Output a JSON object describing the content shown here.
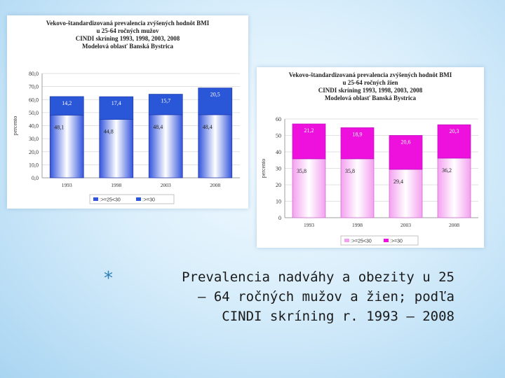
{
  "caption": {
    "bullet": "*",
    "lines": [
      "Prevalencia nadváhy a obezity u 25",
      "– 64 ročných mužov a žien; podľa",
      "CINDI skríning r. 1993 – 2008"
    ]
  },
  "chart_data": [
    {
      "id": "men",
      "type": "bar",
      "stacked": true,
      "title": [
        "Vekovo-štandardizovaná prevalencia zvýšených hodnôt BMI",
        "u 25-64 ročných mužov",
        "CINDI skríning 1993, 1998, 2003, 2008",
        "Modelová oblasť Banská Bystrica"
      ],
      "ylabel": "percento",
      "ylim": [
        0,
        80
      ],
      "yticks": [
        "0,0",
        "10,0",
        "20,0",
        "30,0",
        "40,0",
        "50,0",
        "60,0",
        "70,0",
        "80,0"
      ],
      "categories": [
        "1993",
        "1998",
        "2003",
        "2008"
      ],
      "series": [
        {
          "name": ":>=25<30",
          "values": [
            48.1,
            44.8,
            48.4,
            48.4
          ],
          "labels": [
            "48,1",
            "44,8",
            "48,4",
            "48,4"
          ],
          "color": "#3355dd"
        },
        {
          "name": ":>=30",
          "values": [
            14.2,
            17.4,
            15.7,
            20.5
          ],
          "labels": [
            "14,2",
            "17,4",
            "15,7",
            "20,5"
          ],
          "color": "#2a56d8"
        }
      ],
      "legend_position": "bottom-center"
    },
    {
      "id": "women",
      "type": "bar",
      "stacked": true,
      "title": [
        "Vekovo-štandardizovaná prevalencia zvýšených hodnôt BMI",
        "u 25-64 ročných žien",
        "CINDI skríning 1993, 1998, 2003, 2008",
        "Modelová oblasť Banská Bystrica"
      ],
      "ylabel": "percento",
      "ylim": [
        0,
        60
      ],
      "yticks": [
        "0",
        "10",
        "20",
        "30",
        "40",
        "50",
        "60"
      ],
      "categories": [
        "1993",
        "1998",
        "2003",
        "2008"
      ],
      "series": [
        {
          "name": ":>=25<30",
          "values": [
            35.8,
            35.8,
            29.4,
            36.2
          ],
          "labels": [
            "35,8",
            "35,8",
            "29,4",
            "36,2"
          ],
          "color": "#f4a0f0"
        },
        {
          "name": ":>=30",
          "values": [
            21.2,
            18.9,
            20.6,
            20.3
          ],
          "labels": [
            "21,2",
            "18,9",
            "20,6",
            "20,3"
          ],
          "color": "#ee11dd"
        }
      ],
      "legend_position": "bottom-center"
    }
  ]
}
